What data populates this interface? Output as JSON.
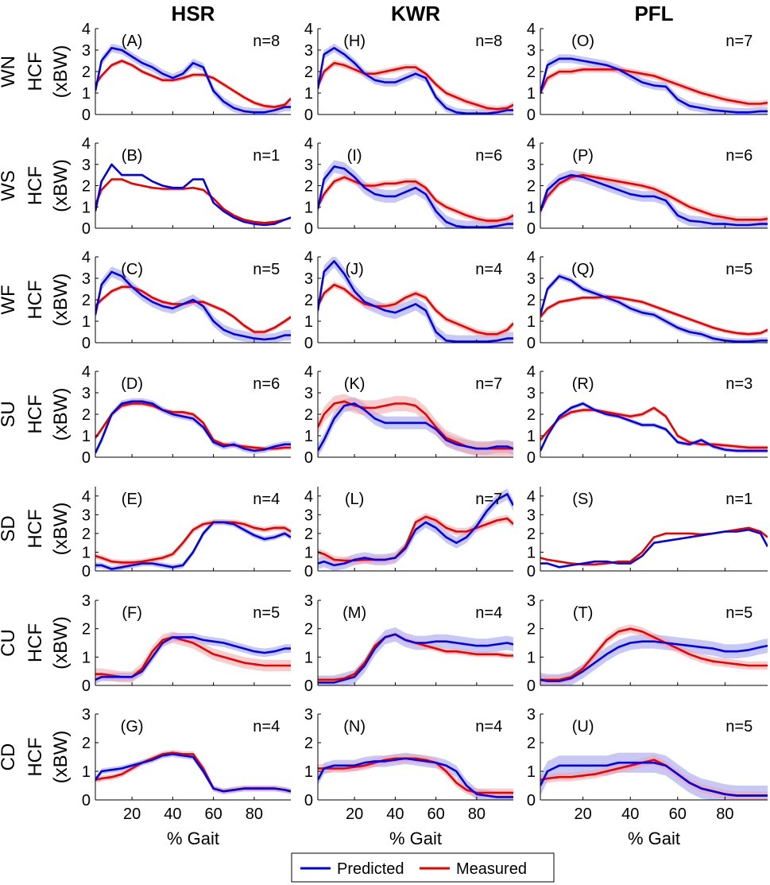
{
  "chart_data": {
    "type": "line",
    "columns": [
      "HSR",
      "KWR",
      "PFL"
    ],
    "rows": [
      "WN",
      "WS",
      "WF",
      "SU",
      "SD",
      "CU",
      "CD"
    ],
    "ylabel_line1_suffix": "HCF",
    "ylabel_line2": "(xBW)",
    "xlabel": "% Gait",
    "xlim": [
      2,
      98
    ],
    "xticks": [
      20,
      40,
      60,
      80
    ],
    "row_ylim": {
      "WN": [
        0,
        4
      ],
      "WS": [
        0,
        4
      ],
      "WF": [
        0,
        4
      ],
      "SU": [
        0,
        4
      ],
      "SD": [
        0,
        4.5
      ],
      "CU": [
        0,
        3
      ],
      "CD": [
        0,
        3
      ]
    },
    "row_yticks": {
      "WN": [
        0,
        1,
        2,
        3,
        4
      ],
      "WS": [
        0,
        1,
        2,
        3,
        4
      ],
      "WF": [
        0,
        1,
        2,
        3,
        4
      ],
      "SU": [
        0,
        1,
        2,
        3,
        4
      ],
      "SD": [
        0,
        1,
        2,
        3,
        4
      ],
      "CU": [
        0,
        1,
        2,
        3
      ],
      "CD": [
        0,
        1,
        2,
        3
      ]
    },
    "legend": {
      "position": "bottom-center",
      "entries": [
        {
          "name": "Predicted",
          "color": "#0000ee"
        },
        {
          "name": "Measured",
          "color": "#ee0000"
        }
      ]
    },
    "colors": {
      "predicted": "#0000ee",
      "measured": "#ee0000",
      "predicted_band": "#9a9aee",
      "measured_band": "#f2a4a4"
    },
    "x": [
      2,
      5,
      10,
      15,
      20,
      25,
      30,
      35,
      40,
      45,
      50,
      55,
      60,
      65,
      70,
      75,
      80,
      85,
      90,
      95,
      98
    ],
    "panels": [
      {
        "label": "(A)",
        "n": "n=8",
        "row": "WN",
        "col": "HSR",
        "predicted": [
          1.1,
          2.5,
          3.1,
          3.0,
          2.7,
          2.4,
          2.2,
          1.9,
          1.7,
          1.9,
          2.4,
          2.2,
          1.1,
          0.6,
          0.3,
          0.15,
          0.1,
          0.1,
          0.2,
          0.35,
          0.35
        ],
        "measured": [
          1.4,
          1.8,
          2.3,
          2.5,
          2.3,
          2.0,
          1.8,
          1.6,
          1.6,
          1.7,
          1.85,
          1.85,
          1.7,
          1.4,
          1.1,
          0.8,
          0.55,
          0.4,
          0.35,
          0.45,
          0.75
        ],
        "pred_band": 0.2,
        "meas_band": 0.1
      },
      {
        "label": "(B)",
        "n": "n=1",
        "row": "WS",
        "col": "HSR",
        "predicted": [
          0.8,
          2.2,
          3.0,
          2.5,
          2.5,
          2.5,
          2.2,
          2.0,
          1.9,
          1.9,
          2.3,
          2.3,
          1.2,
          0.8,
          0.5,
          0.3,
          0.2,
          0.15,
          0.2,
          0.4,
          0.5
        ],
        "measured": [
          1.1,
          1.8,
          2.3,
          2.3,
          2.1,
          2.0,
          1.9,
          1.85,
          1.85,
          1.85,
          1.9,
          1.8,
          1.4,
          0.9,
          0.6,
          0.4,
          0.3,
          0.25,
          0.3,
          0.4,
          0.5
        ],
        "pred_band": 0.05,
        "meas_band": 0.05
      },
      {
        "label": "(C)",
        "n": "n=5",
        "row": "WF",
        "col": "HSR",
        "predicted": [
          1.3,
          2.7,
          3.3,
          3.1,
          2.6,
          2.2,
          1.9,
          1.7,
          1.6,
          1.8,
          2.0,
          1.7,
          1.0,
          0.6,
          0.4,
          0.3,
          0.2,
          0.15,
          0.2,
          0.35,
          0.35
        ],
        "measured": [
          1.7,
          2.0,
          2.4,
          2.6,
          2.6,
          2.4,
          2.1,
          1.9,
          1.8,
          1.8,
          1.9,
          1.9,
          1.7,
          1.5,
          1.2,
          0.8,
          0.5,
          0.5,
          0.7,
          1.0,
          1.2
        ],
        "pred_band": 0.25,
        "meas_band": 0.1
      },
      {
        "label": "(D)",
        "n": "n=6",
        "row": "SU",
        "col": "HSR",
        "predicted": [
          0.2,
          0.8,
          2.0,
          2.5,
          2.6,
          2.6,
          2.5,
          2.2,
          2.0,
          1.9,
          1.8,
          1.4,
          0.7,
          0.5,
          0.6,
          0.4,
          0.3,
          0.35,
          0.5,
          0.6,
          0.6
        ],
        "measured": [
          0.9,
          1.3,
          2.0,
          2.4,
          2.5,
          2.5,
          2.4,
          2.2,
          2.1,
          2.1,
          2.0,
          1.6,
          0.8,
          0.6,
          0.55,
          0.5,
          0.45,
          0.4,
          0.4,
          0.45,
          0.45
        ],
        "pred_band": 0.15,
        "meas_band": 0.1
      },
      {
        "label": "(E)",
        "n": "n=4",
        "row": "SD",
        "col": "HSR",
        "predicted": [
          0.3,
          0.3,
          0.1,
          0.2,
          0.3,
          0.4,
          0.4,
          0.3,
          0.2,
          0.3,
          1.0,
          2.0,
          2.6,
          2.6,
          2.5,
          2.2,
          1.9,
          1.7,
          1.8,
          2.0,
          1.8
        ],
        "measured": [
          0.8,
          0.7,
          0.5,
          0.45,
          0.45,
          0.5,
          0.6,
          0.7,
          0.9,
          1.5,
          2.2,
          2.5,
          2.6,
          2.6,
          2.6,
          2.5,
          2.3,
          2.2,
          2.3,
          2.3,
          2.1
        ],
        "pred_band": 0.15,
        "meas_band": 0.15
      },
      {
        "label": "(F)",
        "n": "n=5",
        "row": "CU",
        "col": "HSR",
        "predicted": [
          0.2,
          0.3,
          0.3,
          0.3,
          0.3,
          0.5,
          1.0,
          1.5,
          1.7,
          1.7,
          1.7,
          1.6,
          1.55,
          1.5,
          1.4,
          1.3,
          1.2,
          1.15,
          1.2,
          1.3,
          1.3
        ],
        "measured": [
          0.4,
          0.4,
          0.35,
          0.3,
          0.3,
          0.6,
          1.2,
          1.6,
          1.7,
          1.6,
          1.5,
          1.3,
          1.1,
          1.0,
          0.9,
          0.8,
          0.75,
          0.7,
          0.7,
          0.7,
          0.7
        ],
        "pred_band": 0.15,
        "meas_band": 0.2
      },
      {
        "label": "(G)",
        "n": "n=4",
        "row": "CD",
        "col": "HSR",
        "predicted": [
          0.7,
          1.0,
          1.05,
          1.1,
          1.2,
          1.3,
          1.4,
          1.55,
          1.6,
          1.55,
          1.5,
          1.0,
          0.4,
          0.3,
          0.35,
          0.4,
          0.4,
          0.4,
          0.4,
          0.35,
          0.3
        ],
        "measured": [
          0.7,
          0.75,
          0.8,
          0.9,
          1.1,
          1.3,
          1.45,
          1.6,
          1.65,
          1.6,
          1.6,
          1.1,
          0.4,
          0.3,
          0.35,
          0.4,
          0.4,
          0.4,
          0.4,
          0.35,
          0.3
        ],
        "pred_band": 0.1,
        "meas_band": 0.1
      },
      {
        "label": "(H)",
        "n": "n=8",
        "row": "WN",
        "col": "KWR",
        "predicted": [
          1.2,
          2.8,
          3.1,
          2.8,
          2.4,
          1.9,
          1.6,
          1.5,
          1.5,
          1.7,
          1.9,
          1.7,
          0.8,
          0.3,
          0.1,
          0.05,
          0.05,
          0.05,
          0.1,
          0.2,
          0.2
        ],
        "measured": [
          1.3,
          2.0,
          2.4,
          2.3,
          2.1,
          1.9,
          1.9,
          2.0,
          2.1,
          2.2,
          2.2,
          1.9,
          1.4,
          1.0,
          0.8,
          0.6,
          0.45,
          0.3,
          0.25,
          0.3,
          0.45
        ],
        "pred_band": 0.2,
        "meas_band": 0.15
      },
      {
        "label": "(I)",
        "n": "n=6",
        "row": "WS",
        "col": "KWR",
        "predicted": [
          0.9,
          2.3,
          2.9,
          2.8,
          2.4,
          1.9,
          1.6,
          1.5,
          1.5,
          1.7,
          1.9,
          1.6,
          0.8,
          0.3,
          0.1,
          0.05,
          0.05,
          0.05,
          0.1,
          0.2,
          0.2
        ],
        "measured": [
          1.0,
          1.6,
          2.2,
          2.4,
          2.2,
          2.0,
          2.0,
          2.1,
          2.1,
          2.2,
          2.2,
          1.9,
          1.3,
          1.0,
          0.8,
          0.6,
          0.45,
          0.35,
          0.35,
          0.45,
          0.6
        ],
        "pred_band": 0.3,
        "meas_band": 0.15
      },
      {
        "label": "(J)",
        "n": "n=4",
        "row": "WF",
        "col": "KWR",
        "predicted": [
          1.5,
          3.3,
          3.8,
          3.2,
          2.4,
          1.9,
          1.7,
          1.5,
          1.4,
          1.6,
          1.8,
          1.5,
          0.5,
          0.1,
          0.05,
          0.05,
          0.05,
          0.05,
          0.1,
          0.2,
          0.2
        ],
        "measured": [
          1.7,
          2.3,
          2.7,
          2.5,
          2.1,
          1.8,
          1.7,
          1.7,
          1.8,
          2.1,
          2.3,
          2.1,
          1.5,
          1.1,
          0.9,
          0.7,
          0.5,
          0.4,
          0.4,
          0.6,
          0.9
        ],
        "pred_band": 0.3,
        "meas_band": 0.15
      },
      {
        "label": "(K)",
        "n": "n=7",
        "row": "SU",
        "col": "KWR",
        "predicted": [
          0.3,
          0.8,
          1.8,
          2.4,
          2.5,
          2.2,
          1.8,
          1.6,
          1.6,
          1.6,
          1.6,
          1.6,
          1.3,
          0.8,
          0.6,
          0.5,
          0.4,
          0.4,
          0.5,
          0.5,
          0.4
        ],
        "measured": [
          1.4,
          2.0,
          2.5,
          2.6,
          2.4,
          2.3,
          2.3,
          2.4,
          2.5,
          2.5,
          2.4,
          2.0,
          1.4,
          0.9,
          0.7,
          0.5,
          0.4,
          0.4,
          0.4,
          0.4,
          0.4
        ],
        "pred_band": 0.3,
        "meas_band": 0.35
      },
      {
        "label": "(L)",
        "n": "n=7",
        "row": "SD",
        "col": "KWR",
        "predicted": [
          0.4,
          0.5,
          0.3,
          0.4,
          0.6,
          0.7,
          0.6,
          0.6,
          0.7,
          1.2,
          2.2,
          2.6,
          2.3,
          1.8,
          1.5,
          1.8,
          2.4,
          3.2,
          3.8,
          4.1,
          3.5
        ],
        "measured": [
          1.0,
          0.9,
          0.6,
          0.55,
          0.55,
          0.6,
          0.6,
          0.6,
          0.7,
          1.3,
          2.6,
          2.9,
          2.7,
          2.3,
          2.1,
          2.1,
          2.3,
          2.5,
          2.7,
          2.8,
          2.5
        ],
        "pred_band": 0.3,
        "meas_band": 0.2
      },
      {
        "label": "(M)",
        "n": "n=4",
        "row": "CU",
        "col": "KWR",
        "predicted": [
          0.1,
          0.1,
          0.1,
          0.2,
          0.3,
          0.7,
          1.3,
          1.7,
          1.8,
          1.6,
          1.5,
          1.5,
          1.55,
          1.55,
          1.5,
          1.45,
          1.4,
          1.4,
          1.45,
          1.5,
          1.45
        ],
        "measured": [
          0.2,
          0.2,
          0.2,
          0.25,
          0.4,
          0.8,
          1.4,
          1.7,
          1.8,
          1.6,
          1.5,
          1.4,
          1.3,
          1.2,
          1.2,
          1.15,
          1.1,
          1.1,
          1.1,
          1.05,
          1.05
        ],
        "pred_band": 0.25,
        "meas_band": 0.1
      },
      {
        "label": "(N)",
        "n": "n=4",
        "row": "CD",
        "col": "KWR",
        "predicted": [
          0.7,
          1.1,
          1.2,
          1.2,
          1.2,
          1.3,
          1.35,
          1.35,
          1.4,
          1.45,
          1.4,
          1.35,
          1.3,
          1.2,
          1.0,
          0.5,
          0.2,
          0.15,
          0.1,
          0.1,
          0.1
        ],
        "measured": [
          1.1,
          1.1,
          1.1,
          1.1,
          1.15,
          1.2,
          1.3,
          1.4,
          1.45,
          1.45,
          1.45,
          1.4,
          1.3,
          1.0,
          0.6,
          0.35,
          0.25,
          0.25,
          0.25,
          0.25,
          0.25
        ],
        "pred_band": 0.2,
        "meas_band": 0.15
      },
      {
        "label": "(O)",
        "n": "n=7",
        "row": "WN",
        "col": "PFL",
        "predicted": [
          1.0,
          2.3,
          2.6,
          2.6,
          2.5,
          2.4,
          2.3,
          2.1,
          1.8,
          1.5,
          1.35,
          1.3,
          0.7,
          0.4,
          0.3,
          0.2,
          0.15,
          0.1,
          0.1,
          0.15,
          0.15
        ],
        "measured": [
          1.0,
          1.7,
          2.0,
          2.0,
          2.1,
          2.1,
          2.1,
          2.1,
          2.0,
          1.9,
          1.8,
          1.6,
          1.4,
          1.2,
          1.0,
          0.85,
          0.7,
          0.6,
          0.5,
          0.5,
          0.55
        ],
        "pred_band": 0.2,
        "meas_band": 0.15
      },
      {
        "label": "(P)",
        "n": "n=6",
        "row": "WS",
        "col": "PFL",
        "predicted": [
          0.8,
          1.8,
          2.3,
          2.5,
          2.4,
          2.2,
          2.0,
          1.8,
          1.6,
          1.5,
          1.5,
          1.3,
          0.6,
          0.35,
          0.3,
          0.2,
          0.2,
          0.15,
          0.15,
          0.2,
          0.2
        ],
        "measured": [
          0.8,
          1.5,
          2.1,
          2.4,
          2.5,
          2.4,
          2.3,
          2.2,
          2.1,
          2.0,
          1.85,
          1.6,
          1.3,
          1.0,
          0.8,
          0.6,
          0.5,
          0.4,
          0.4,
          0.4,
          0.45
        ],
        "pred_band": 0.25,
        "meas_band": 0.15
      },
      {
        "label": "(Q)",
        "n": "n=5",
        "row": "WF",
        "col": "PFL",
        "predicted": [
          1.3,
          2.5,
          3.1,
          2.9,
          2.5,
          2.3,
          2.1,
          1.9,
          1.6,
          1.4,
          1.3,
          1.0,
          0.7,
          0.5,
          0.4,
          0.2,
          0.1,
          0.05,
          0.05,
          0.1,
          0.1
        ],
        "measured": [
          1.2,
          1.6,
          1.9,
          2.0,
          2.1,
          2.1,
          2.15,
          2.1,
          2.0,
          1.9,
          1.7,
          1.5,
          1.3,
          1.1,
          0.9,
          0.7,
          0.55,
          0.45,
          0.4,
          0.45,
          0.6
        ],
        "pred_band": 0.15,
        "meas_band": 0.1
      },
      {
        "label": "(R)",
        "n": "n=3",
        "row": "SU",
        "col": "PFL",
        "predicted": [
          0.3,
          1.0,
          1.9,
          2.3,
          2.5,
          2.2,
          2.0,
          1.9,
          1.7,
          1.5,
          1.5,
          1.3,
          0.7,
          0.6,
          0.8,
          0.5,
          0.35,
          0.3,
          0.3,
          0.3,
          0.3
        ],
        "measured": [
          0.8,
          1.2,
          1.8,
          2.1,
          2.2,
          2.2,
          2.1,
          2.0,
          1.9,
          2.0,
          2.3,
          1.9,
          1.0,
          0.7,
          0.6,
          0.6,
          0.55,
          0.5,
          0.45,
          0.45,
          0.45
        ],
        "pred_band": 0.1,
        "meas_band": 0.1
      },
      {
        "label": "(S)",
        "n": "n=1",
        "row": "SD",
        "col": "PFL",
        "predicted": [
          0.4,
          0.4,
          0.2,
          0.3,
          0.4,
          0.5,
          0.5,
          0.4,
          0.4,
          0.8,
          1.5,
          1.6,
          1.7,
          1.8,
          1.9,
          2.0,
          2.1,
          2.1,
          2.2,
          2.0,
          1.3
        ],
        "measured": [
          0.7,
          0.6,
          0.5,
          0.4,
          0.35,
          0.35,
          0.4,
          0.5,
          0.5,
          1.0,
          1.8,
          2.0,
          2.0,
          2.0,
          1.95,
          2.0,
          2.1,
          2.2,
          2.3,
          2.1,
          1.8
        ],
        "pred_band": 0.05,
        "meas_band": 0.05
      },
      {
        "label": "(T)",
        "n": "n=5",
        "row": "CU",
        "col": "PFL",
        "predicted": [
          0.2,
          0.15,
          0.15,
          0.25,
          0.5,
          0.8,
          1.1,
          1.35,
          1.5,
          1.55,
          1.55,
          1.5,
          1.45,
          1.4,
          1.35,
          1.3,
          1.2,
          1.2,
          1.25,
          1.35,
          1.4
        ],
        "measured": [
          0.2,
          0.2,
          0.2,
          0.3,
          0.6,
          1.1,
          1.6,
          1.9,
          2.0,
          1.9,
          1.7,
          1.5,
          1.3,
          1.1,
          0.95,
          0.85,
          0.8,
          0.75,
          0.7,
          0.7,
          0.7
        ],
        "pred_band": 0.25,
        "meas_band": 0.15
      },
      {
        "label": "(U)",
        "n": "n=5",
        "row": "CD",
        "col": "PFL",
        "predicted": [
          0.5,
          1.0,
          1.2,
          1.2,
          1.2,
          1.2,
          1.2,
          1.3,
          1.3,
          1.3,
          1.3,
          1.2,
          0.9,
          0.6,
          0.4,
          0.3,
          0.2,
          0.15,
          0.15,
          0.15,
          0.15
        ],
        "measured": [
          0.7,
          0.75,
          0.8,
          0.8,
          0.85,
          0.9,
          1.0,
          1.1,
          1.2,
          1.3,
          1.4,
          1.2,
          0.9,
          0.6,
          0.4,
          0.3,
          0.2,
          0.15,
          0.15,
          0.15,
          0.15
        ],
        "pred_band": 0.35,
        "meas_band": 0.15
      }
    ]
  }
}
